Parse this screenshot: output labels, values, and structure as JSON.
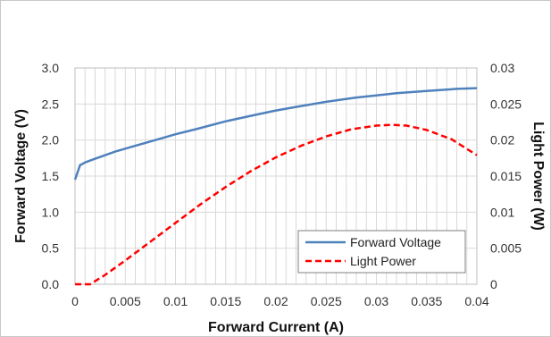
{
  "chart_data": {
    "type": "line",
    "title": "",
    "xlabel": "Forward Current (A)",
    "ylabel": "Forward Voltage (V)",
    "y2label": "Light Power (W)",
    "xlim": [
      0,
      0.04
    ],
    "ylim": [
      0,
      3.0
    ],
    "y2lim": [
      0,
      0.03
    ],
    "x_ticks": [
      "0",
      "0.005",
      "0.01",
      "0.015",
      "0.02",
      "0.025",
      "0.03",
      "0.035",
      "0.04"
    ],
    "y_ticks": [
      "0.0",
      "0.5",
      "1.0",
      "1.5",
      "2.0",
      "2.5",
      "3.0"
    ],
    "y2_ticks": [
      "0",
      "0.005",
      "0.01",
      "0.015",
      "0.02",
      "0.025",
      "0.03"
    ],
    "grid": true,
    "legend_position": "bottom-right",
    "series": [
      {
        "name": "Forward Voltage",
        "axis": "left",
        "color": "#4f81bd",
        "style": "solid",
        "x": [
          0,
          0.0005,
          0.001,
          0.002,
          0.003,
          0.004,
          0.005,
          0.006,
          0.008,
          0.01,
          0.012,
          0.015,
          0.018,
          0.02,
          0.022,
          0.025,
          0.028,
          0.03,
          0.032,
          0.035,
          0.038,
          0.04
        ],
        "y": [
          1.45,
          1.65,
          1.69,
          1.74,
          1.79,
          1.84,
          1.88,
          1.92,
          2.0,
          2.08,
          2.15,
          2.26,
          2.35,
          2.41,
          2.46,
          2.53,
          2.59,
          2.62,
          2.65,
          2.68,
          2.71,
          2.72
        ]
      },
      {
        "name": "Light Power",
        "axis": "right",
        "color": "#ff0000",
        "style": "dashed",
        "x": [
          0,
          0.0015,
          0.003,
          0.005,
          0.0075,
          0.01,
          0.0125,
          0.015,
          0.0175,
          0.02,
          0.0225,
          0.025,
          0.0275,
          0.03,
          0.0315,
          0.033,
          0.035,
          0.0375,
          0.04
        ],
        "y": [
          0,
          0,
          0.0013,
          0.0033,
          0.0059,
          0.0085,
          0.0111,
          0.0135,
          0.0157,
          0.0176,
          0.0192,
          0.0205,
          0.0215,
          0.022,
          0.0221,
          0.022,
          0.0214,
          0.0201,
          0.0179
        ]
      }
    ]
  }
}
